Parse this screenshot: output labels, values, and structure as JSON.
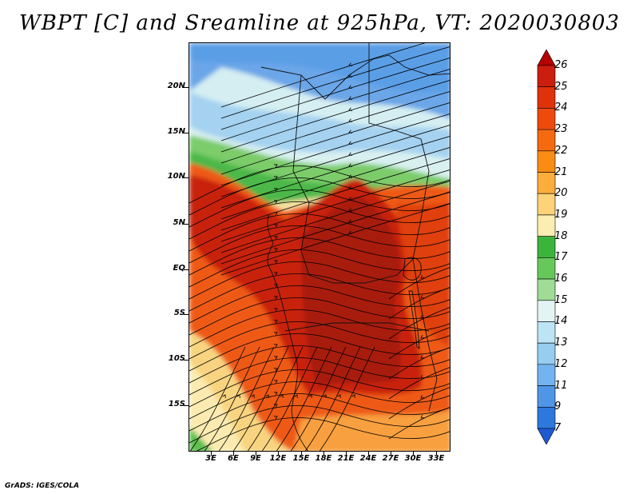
{
  "title": "WBPT [C] and Sreamline at 925hPa, VT: 2020030803",
  "footer": "GrADS: IGES/COLA",
  "lat_labels": [
    "20N",
    "15N",
    "10N",
    "5N",
    "EQ",
    "5S",
    "10S",
    "15S"
  ],
  "lon_labels": [
    "3E",
    "6E",
    "9E",
    "12E",
    "15E",
    "18E",
    "21E",
    "24E",
    "27E",
    "30E",
    "33E"
  ],
  "colorbar": {
    "labels": [
      "26",
      "25",
      "24",
      "23",
      "22",
      "21",
      "20",
      "19",
      "18",
      "17",
      "16",
      "15",
      "14",
      "13",
      "12",
      "11",
      "9",
      "7"
    ],
    "colors": [
      "#b40000",
      "#cc1e0e",
      "#e0320a",
      "#ee4a0c",
      "#f56a10",
      "#fa8c14",
      "#fcae3a",
      "#fdd278",
      "#fbeeb0",
      "#3cb43c",
      "#66c85a",
      "#a0dc96",
      "#e4f4f4",
      "#bce4f4",
      "#96cdf0",
      "#73b4f0",
      "#5096e6",
      "#2d78dc",
      "#1e5ad2"
    ]
  },
  "colors": {
    "hot": "#b41a0a",
    "warm": "#e0460e",
    "orange": "#f07818",
    "yellow": "#fbe6a0",
    "green": "#5cc050",
    "light_cyan": "#d8f0f0",
    "sky": "#8ec8ee",
    "blue": "#5a9ee6"
  }
}
